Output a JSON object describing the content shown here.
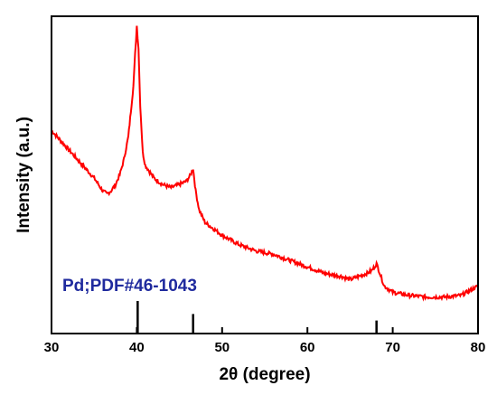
{
  "chart_data": {
    "type": "line",
    "xlabel": "2θ (degree)",
    "ylabel": "Intensity (a.u.)",
    "xlim": [
      30,
      80
    ],
    "x_ticks": [
      "30",
      "40",
      "50",
      "60",
      "70",
      "80"
    ],
    "y_tick_labels": false,
    "grid": false,
    "legend": "none",
    "series": [
      {
        "color": "#ff0000",
        "points": [
          [
            30.0,
            0.64
          ],
          [
            31.0,
            0.61
          ],
          [
            32.0,
            0.58
          ],
          [
            33.0,
            0.55
          ],
          [
            34.0,
            0.52
          ],
          [
            35.0,
            0.49
          ],
          [
            36.0,
            0.45
          ],
          [
            36.5,
            0.44
          ],
          [
            37.0,
            0.45
          ],
          [
            37.5,
            0.47
          ],
          [
            38.0,
            0.5
          ],
          [
            38.5,
            0.55
          ],
          [
            39.0,
            0.62
          ],
          [
            39.3,
            0.7
          ],
          [
            39.6,
            0.78
          ],
          [
            39.8,
            0.88
          ],
          [
            40.0,
            0.97
          ],
          [
            40.2,
            0.9
          ],
          [
            40.4,
            0.72
          ],
          [
            40.7,
            0.57
          ],
          [
            41.0,
            0.53
          ],
          [
            41.5,
            0.51
          ],
          [
            42.0,
            0.49
          ],
          [
            43.0,
            0.47
          ],
          [
            44.0,
            0.46
          ],
          [
            45.0,
            0.47
          ],
          [
            45.8,
            0.48
          ],
          [
            46.3,
            0.5
          ],
          [
            46.6,
            0.52
          ],
          [
            46.9,
            0.45
          ],
          [
            47.3,
            0.39
          ],
          [
            48.0,
            0.35
          ],
          [
            49.0,
            0.33
          ],
          [
            50.0,
            0.31
          ],
          [
            52.0,
            0.28
          ],
          [
            54.0,
            0.26
          ],
          [
            56.0,
            0.25
          ],
          [
            58.0,
            0.23
          ],
          [
            60.0,
            0.21
          ],
          [
            62.0,
            0.19
          ],
          [
            64.0,
            0.18
          ],
          [
            65.0,
            0.17
          ],
          [
            66.0,
            0.18
          ],
          [
            67.0,
            0.19
          ],
          [
            67.6,
            0.2
          ],
          [
            68.1,
            0.22
          ],
          [
            68.5,
            0.19
          ],
          [
            69.0,
            0.15
          ],
          [
            70.0,
            0.13
          ],
          [
            72.0,
            0.12
          ],
          [
            74.0,
            0.115
          ],
          [
            76.0,
            0.115
          ],
          [
            78.0,
            0.12
          ],
          [
            79.0,
            0.135
          ],
          [
            80.0,
            0.15
          ]
        ]
      }
    ],
    "reference": {
      "label": "Pd;PDF#46-1043",
      "color": "#1f2a9e",
      "peaks": [
        {
          "x": 40.1,
          "intensity": 1.0
        },
        {
          "x": 46.6,
          "intensity": 0.6
        },
        {
          "x": 68.1,
          "intensity": 0.4
        }
      ]
    }
  }
}
